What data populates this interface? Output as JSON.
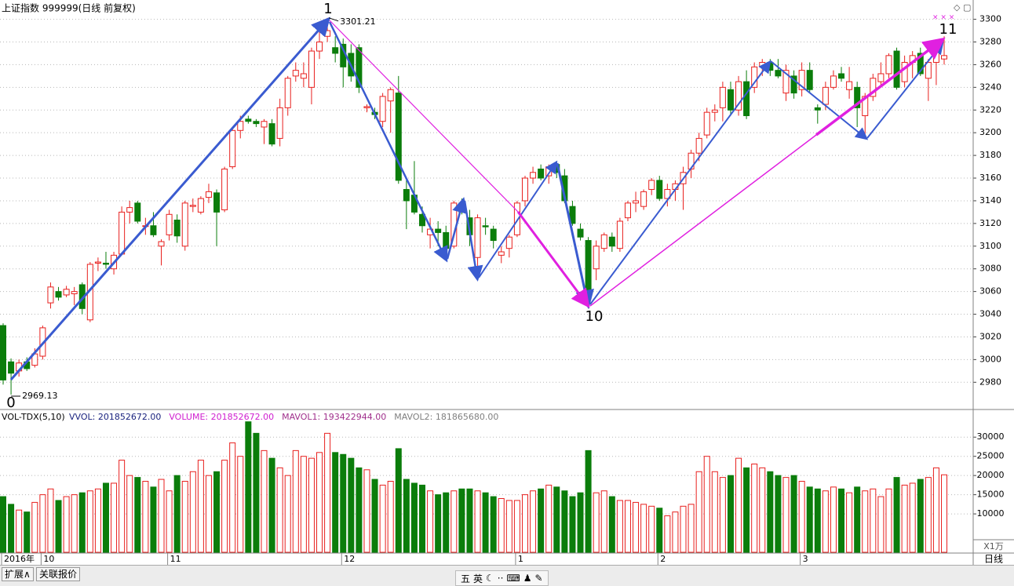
{
  "chart_data": {
    "type": "candlestick",
    "title": "上证指数 999999(日线 前复权)",
    "up_color": "#e8201e",
    "down_color": "#0b7d0b",
    "ylim": [
      2956,
      3317
    ],
    "yticks": [
      2980,
      3000,
      3020,
      3040,
      3060,
      3080,
      3100,
      3120,
      3140,
      3160,
      3180,
      3200,
      3220,
      3240,
      3260,
      3280,
      3300
    ],
    "grid": true,
    "categories": [
      "2016年",
      null,
      null,
      null,
      null,
      "10",
      null,
      null,
      null,
      null,
      null,
      null,
      null,
      null,
      null,
      null,
      null,
      null,
      null,
      null,
      null,
      "11",
      null,
      null,
      null,
      null,
      null,
      null,
      null,
      null,
      null,
      null,
      null,
      null,
      null,
      null,
      null,
      null,
      null,
      null,
      null,
      null,
      null,
      "12",
      null,
      null,
      null,
      null,
      null,
      null,
      null,
      null,
      null,
      null,
      null,
      null,
      null,
      null,
      null,
      null,
      null,
      null,
      null,
      null,
      null,
      "1",
      null,
      null,
      null,
      null,
      null,
      null,
      null,
      null,
      null,
      null,
      null,
      null,
      null,
      null,
      null,
      null,
      null,
      "2",
      null,
      null,
      null,
      null,
      null,
      null,
      null,
      null,
      null,
      null,
      null,
      null,
      null,
      null,
      null,
      null,
      null,
      "3",
      null,
      null,
      null,
      null,
      null,
      null,
      null,
      null,
      null,
      null,
      null,
      null,
      null,
      null,
      null,
      null,
      null,
      null
    ],
    "ohlc": [
      [
        3030,
        3032,
        2978,
        2982
      ],
      [
        2998,
        3001,
        2969.13,
        2988
      ],
      [
        2990,
        3000,
        2985,
        2997
      ],
      [
        2998,
        3002,
        2990,
        2992
      ],
      [
        2995,
        3010,
        2993,
        3005
      ],
      [
        3003,
        3030,
        3000,
        3028
      ],
      [
        3050,
        3068,
        3045,
        3064
      ],
      [
        3060,
        3064,
        3052,
        3055
      ],
      [
        3057,
        3065,
        3055,
        3062
      ],
      [
        3058,
        3064,
        3048,
        3060
      ],
      [
        3066,
        3068,
        3040,
        3045
      ],
      [
        3035,
        3086,
        3033,
        3084
      ],
      [
        3085,
        3090,
        3078,
        3086
      ],
      [
        3085,
        3095,
        3080,
        3084
      ],
      [
        3080,
        3095,
        3075,
        3092
      ],
      [
        3093,
        3135,
        3092,
        3130
      ],
      [
        3130,
        3140,
        3120,
        3134
      ],
      [
        3138,
        3140,
        3120,
        3122
      ],
      [
        3118,
        3125,
        3110,
        3118
      ],
      [
        3118,
        3130,
        3108,
        3110
      ],
      [
        3100,
        3106,
        3083,
        3104
      ],
      [
        3110,
        3132,
        3105,
        3128
      ],
      [
        3123,
        3128,
        3103,
        3109
      ],
      [
        3100,
        3140,
        3096,
        3138
      ],
      [
        3135,
        3142,
        3130,
        3136
      ],
      [
        3130,
        3144,
        3128,
        3142
      ],
      [
        3143,
        3155,
        3138,
        3148
      ],
      [
        3147,
        3150,
        3100,
        3130
      ],
      [
        3132,
        3170,
        3130,
        3168
      ],
      [
        3170,
        3205,
        3168,
        3202
      ],
      [
        3202,
        3215,
        3195,
        3210
      ],
      [
        3212,
        3215,
        3208,
        3210
      ],
      [
        3210,
        3212,
        3205,
        3208
      ],
      [
        3205,
        3212,
        3190,
        3210
      ],
      [
        3208,
        3212,
        3188,
        3190
      ],
      [
        3195,
        3230,
        3188,
        3222
      ],
      [
        3222,
        3250,
        3215,
        3248
      ],
      [
        3250,
        3262,
        3245,
        3255
      ],
      [
        3248,
        3262,
        3240,
        3252
      ],
      [
        3240,
        3275,
        3225,
        3272
      ],
      [
        3272,
        3290,
        3265,
        3280
      ],
      [
        3285,
        3301.21,
        3280,
        3290
      ],
      [
        3275,
        3285,
        3262,
        3270
      ],
      [
        3278,
        3283,
        3240,
        3258
      ],
      [
        3270,
        3278,
        3245,
        3250
      ],
      [
        3275,
        3278,
        3235,
        3240
      ],
      [
        3222,
        3225,
        3218,
        3223
      ],
      [
        3218,
        3222,
        3212,
        3216
      ],
      [
        3210,
        3235,
        3205,
        3232
      ],
      [
        3228,
        3240,
        3200,
        3238
      ],
      [
        3235,
        3250,
        3155,
        3158
      ],
      [
        3150,
        3160,
        3115,
        3140
      ],
      [
        3145,
        3175,
        3128,
        3130
      ],
      [
        3128,
        3135,
        3112,
        3118
      ],
      [
        3110,
        3125,
        3098,
        3115
      ],
      [
        3115,
        3122,
        3100,
        3112
      ],
      [
        3112,
        3118,
        3088,
        3098
      ],
      [
        3100,
        3140,
        3098,
        3138
      ],
      [
        3138,
        3142,
        3128,
        3130
      ],
      [
        3125,
        3132,
        3100,
        3110
      ],
      [
        3090,
        3128,
        3070,
        3125
      ],
      [
        3118,
        3125,
        3110,
        3117
      ],
      [
        3115,
        3118,
        3098,
        3105
      ],
      [
        3092,
        3100,
        3085,
        3095
      ],
      [
        3098,
        3110,
        3090,
        3108
      ],
      [
        3110,
        3140,
        3108,
        3138
      ],
      [
        3140,
        3162,
        3135,
        3160
      ],
      [
        3160,
        3170,
        3155,
        3165
      ],
      [
        3168,
        3172,
        3158,
        3160
      ],
      [
        3162,
        3172,
        3155,
        3170
      ],
      [
        3172,
        3175,
        3160,
        3165
      ],
      [
        3162,
        3168,
        3138,
        3140
      ],
      [
        3135,
        3140,
        3118,
        3120
      ],
      [
        3115,
        3120,
        3105,
        3108
      ],
      [
        3105,
        3108,
        3045,
        3055
      ],
      [
        3080,
        3105,
        3070,
        3100
      ],
      [
        3098,
        3112,
        3095,
        3110
      ],
      [
        3108,
        3112,
        3095,
        3100
      ],
      [
        3098,
        3125,
        3095,
        3122
      ],
      [
        3125,
        3140,
        3122,
        3138
      ],
      [
        3138,
        3148,
        3130,
        3140
      ],
      [
        3135,
        3150,
        3132,
        3148
      ],
      [
        3150,
        3160,
        3145,
        3158
      ],
      [
        3158,
        3162,
        3140,
        3142
      ],
      [
        3142,
        3155,
        3135,
        3150
      ],
      [
        3150,
        3158,
        3140,
        3155
      ],
      [
        3155,
        3170,
        3132,
        3165
      ],
      [
        3168,
        3185,
        3160,
        3182
      ],
      [
        3182,
        3200,
        3175,
        3195
      ],
      [
        3198,
        3222,
        3195,
        3218
      ],
      [
        3218,
        3225,
        3210,
        3220
      ],
      [
        3222,
        3245,
        3210,
        3240
      ],
      [
        3238,
        3245,
        3215,
        3220
      ],
      [
        3220,
        3250,
        3215,
        3245
      ],
      [
        3245,
        3255,
        3212,
        3215
      ],
      [
        3240,
        3262,
        3235,
        3258
      ],
      [
        3258,
        3265,
        3250,
        3262
      ],
      [
        3262,
        3265,
        3250,
        3255
      ],
      [
        3255,
        3265,
        3248,
        3250
      ],
      [
        3235,
        3260,
        3228,
        3255
      ],
      [
        3250,
        3255,
        3230,
        3235
      ],
      [
        3238,
        3262,
        3232,
        3255
      ],
      [
        3255,
        3262,
        3235,
        3238
      ],
      [
        3222,
        3225,
        3208,
        3220
      ],
      [
        3225,
        3245,
        3220,
        3240
      ],
      [
        3240,
        3255,
        3238,
        3250
      ],
      [
        3252,
        3258,
        3245,
        3248
      ],
      [
        3238,
        3258,
        3230,
        3245
      ],
      [
        3240,
        3245,
        3205,
        3222
      ],
      [
        3215,
        3235,
        3195,
        3232
      ],
      [
        3232,
        3252,
        3228,
        3248
      ],
      [
        3245,
        3262,
        3240,
        3252
      ],
      [
        3252,
        3270,
        3248,
        3268
      ],
      [
        3272,
        3275,
        3238,
        3240
      ],
      [
        3245,
        3268,
        3240,
        3262
      ],
      [
        3262,
        3272,
        3248,
        3268
      ],
      [
        3270,
        3275,
        3250,
        3252
      ],
      [
        3248,
        3265,
        3228,
        3262
      ],
      [
        3262,
        3280,
        3242,
        3275
      ],
      [
        3265,
        3285,
        3260,
        3268
      ]
    ],
    "high_label": 3301.21,
    "low_label": 2969.13,
    "wave_labels": [
      "0",
      "1",
      "10",
      "11"
    ],
    "volume": [
      14500,
      12500,
      11000,
      10500,
      13000,
      15000,
      16500,
      13500,
      14500,
      15000,
      15500,
      16000,
      16500,
      18000,
      18000,
      24000,
      20000,
      19500,
      18500,
      17000,
      19000,
      16000,
      20000,
      18500,
      21000,
      24000,
      20000,
      21000,
      24000,
      28500,
      25000,
      34000,
      31000,
      26500,
      24500,
      22000,
      20000,
      26500,
      25000,
      24500,
      26000,
      31000,
      26000,
      25500,
      24500,
      22000,
      21500,
      19000,
      17500,
      18500,
      27000,
      19000,
      18000,
      17500,
      16000,
      15000,
      15500,
      16000,
      16500,
      16500,
      16000,
      15500,
      14500,
      14000,
      13500,
      13500,
      15000,
      16000,
      16500,
      17500,
      17000,
      16000,
      14500,
      15500,
      26500,
      15500,
      16000,
      14500,
      13500,
      13500,
      13000,
      12500,
      12000,
      11500,
      9500,
      10500,
      12000,
      12500,
      21000,
      25000,
      21000,
      19500,
      20000,
      24500,
      22000,
      23000,
      22000,
      21000,
      20000,
      19500,
      20000,
      18500,
      17000,
      16500,
      16000,
      17000,
      16500,
      15500,
      17000,
      16000,
      16500,
      14500,
      16500,
      19500,
      17500,
      18000,
      19000,
      19500,
      22000,
      20185
    ],
    "vlim": [
      0,
      37000
    ],
    "vticks": [
      10000,
      15000,
      20000,
      25000,
      30000
    ],
    "volume_unit": "X1万",
    "period_label": "日线",
    "vol_indicator": "VOL-TDX(5,10)",
    "vol_legend": [
      {
        "text": "VVOL: 201852672.00",
        "color": "#1a237e"
      },
      {
        "text": "VOLUME: 201852672.00",
        "color": "#d020d0"
      },
      {
        "text": "MAVOL1: 193422944.00",
        "color": "#a0308c"
      },
      {
        "text": "MAVOL2: 181865680.00",
        "color": "#808080"
      }
    ]
  },
  "ui": {
    "tabs": [
      "扩展∧",
      "关联报价"
    ],
    "toolbar": [
      "五",
      "英"
    ]
  }
}
